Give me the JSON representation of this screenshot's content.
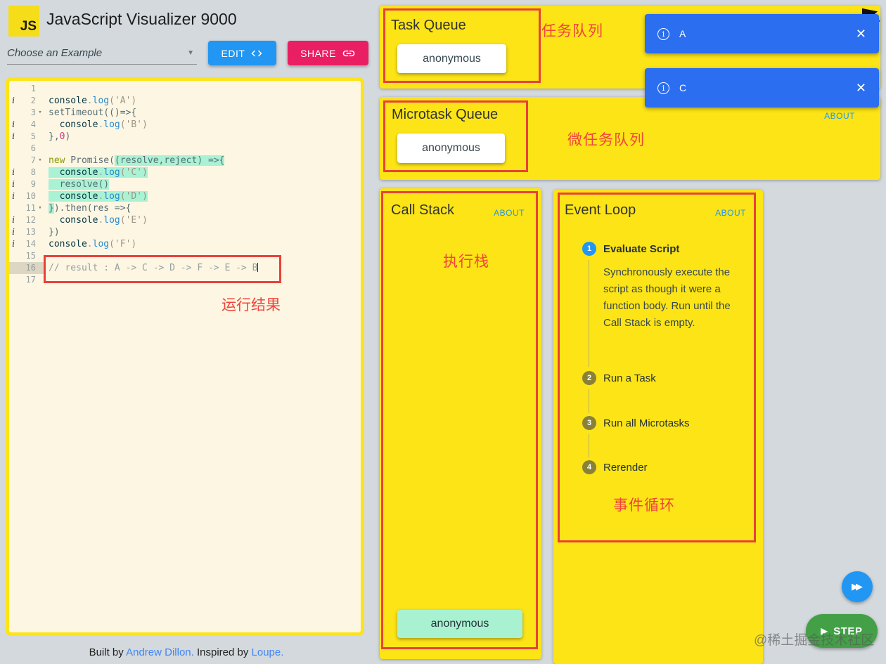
{
  "colors": {
    "accent_blue": "#2196f3",
    "accent_pink": "#e91e63",
    "panel_yellow": "#fce417",
    "annotation_red": "#e8413a",
    "toast_blue": "#2b6ef0",
    "chip_mint": "#a8f2d2",
    "step_green": "#43a047",
    "editor_bg": "#fdf6e3"
  },
  "header": {
    "logo": "JS",
    "title": "JavaScript Visualizer 9000",
    "example_select": "Choose an Example",
    "edit_label": "EDIT",
    "share_label": "SHARE"
  },
  "editor": {
    "annotation": "运行结果",
    "lines": [
      {
        "n": 1,
        "seg": []
      },
      {
        "n": 2,
        "icon": "i",
        "seg": [
          {
            "t": "console",
            "c": "c"
          },
          {
            "t": ".",
            "c": "d"
          },
          {
            "t": "log",
            "c": "b"
          },
          {
            "t": "('A')",
            "c": "s"
          }
        ]
      },
      {
        "n": 3,
        "icon": "fold",
        "seg": [
          {
            "t": "setTimeout(()=>{",
            "c": "p"
          }
        ]
      },
      {
        "n": 4,
        "icon": "i",
        "seg": [
          {
            "t": "  ",
            "c": "p"
          },
          {
            "t": "console",
            "c": "c"
          },
          {
            "t": ".",
            "c": "d"
          },
          {
            "t": "log",
            "c": "b"
          },
          {
            "t": "('B')",
            "c": "s"
          }
        ]
      },
      {
        "n": 5,
        "icon": "i",
        "seg": [
          {
            "t": "},",
            "c": "p"
          },
          {
            "t": "0",
            "c": "n"
          },
          {
            "t": ")",
            "c": "p"
          }
        ]
      },
      {
        "n": 6,
        "seg": []
      },
      {
        "n": 7,
        "icon": "fold",
        "seg": [
          {
            "t": "new",
            "c": "k"
          },
          {
            "t": " Promise(",
            "c": "p"
          },
          {
            "t": "(resolve,reject) =>{",
            "c": "p",
            "h": true
          }
        ]
      },
      {
        "n": 8,
        "icon": "i",
        "seg": [
          {
            "t": "  ",
            "c": "p",
            "h": true
          },
          {
            "t": "console",
            "c": "c",
            "h": true
          },
          {
            "t": ".",
            "c": "d",
            "h": true
          },
          {
            "t": "log",
            "c": "b",
            "h": true
          },
          {
            "t": "('C')",
            "c": "s",
            "h": true
          }
        ]
      },
      {
        "n": 9,
        "icon": "i",
        "seg": [
          {
            "t": "  resolve()",
            "c": "p",
            "h": true
          }
        ]
      },
      {
        "n": 10,
        "icon": "i",
        "seg": [
          {
            "t": "  ",
            "c": "p",
            "h": true
          },
          {
            "t": "console",
            "c": "c",
            "h": true
          },
          {
            "t": ".",
            "c": "d",
            "h": true
          },
          {
            "t": "log",
            "c": "b",
            "h": true
          },
          {
            "t": "('D')",
            "c": "s",
            "h": true
          }
        ]
      },
      {
        "n": 11,
        "icon": "fold",
        "seg": [
          {
            "t": "}",
            "c": "p",
            "h": true
          },
          {
            "t": ").then(res =>{",
            "c": "p"
          }
        ]
      },
      {
        "n": 12,
        "icon": "i",
        "seg": [
          {
            "t": "  ",
            "c": "p"
          },
          {
            "t": "console",
            "c": "c"
          },
          {
            "t": ".",
            "c": "d"
          },
          {
            "t": "log",
            "c": "b"
          },
          {
            "t": "('E')",
            "c": "s"
          }
        ]
      },
      {
        "n": 13,
        "icon": "i",
        "seg": [
          {
            "t": "})",
            "c": "p"
          }
        ]
      },
      {
        "n": 14,
        "icon": "i",
        "seg": [
          {
            "t": "console",
            "c": "c"
          },
          {
            "t": ".",
            "c": "d"
          },
          {
            "t": "log",
            "c": "b"
          },
          {
            "t": "('F')",
            "c": "s"
          }
        ]
      },
      {
        "n": 15,
        "seg": []
      },
      {
        "n": 16,
        "active": true,
        "caret": true,
        "seg": [
          {
            "t": "// result : A -> C -> D -> F -> E -> B",
            "c": "m"
          }
        ]
      },
      {
        "n": 17,
        "seg": []
      }
    ]
  },
  "footer": {
    "prefix": "Built by ",
    "link1": "Andrew Dillon.",
    "mid": " Inspired by ",
    "link2": "Loupe."
  },
  "task_queue": {
    "title": "Task Queue",
    "items": [
      "anonymous"
    ],
    "annotation": "任务队列"
  },
  "microtask_queue": {
    "title": "Microtask Queue",
    "items": [
      "anonymous"
    ],
    "annotation": "微任务队列",
    "about": "ABOUT"
  },
  "call_stack": {
    "title": "Call Stack",
    "about": "ABOUT",
    "items": [
      "anonymous"
    ],
    "annotation": "执行栈"
  },
  "event_loop": {
    "title": "Event Loop",
    "about": "ABOUT",
    "annotation": "事件循环",
    "steps": [
      {
        "num": "1",
        "label": "Evaluate Script",
        "active": true,
        "description": "Synchronously execute the script as though it were a function body. Run until the Call Stack is empty."
      },
      {
        "num": "2",
        "label": "Run a Task",
        "active": false,
        "description": ""
      },
      {
        "num": "3",
        "label": "Run all Microtasks",
        "active": false,
        "description": ""
      },
      {
        "num": "4",
        "label": "Rerender",
        "active": false,
        "description": ""
      }
    ]
  },
  "toasts": [
    {
      "label": "A"
    },
    {
      "label": "C"
    }
  ],
  "controls": {
    "step_label": "STEP"
  },
  "watermark": "@稀土掘金技术社区"
}
